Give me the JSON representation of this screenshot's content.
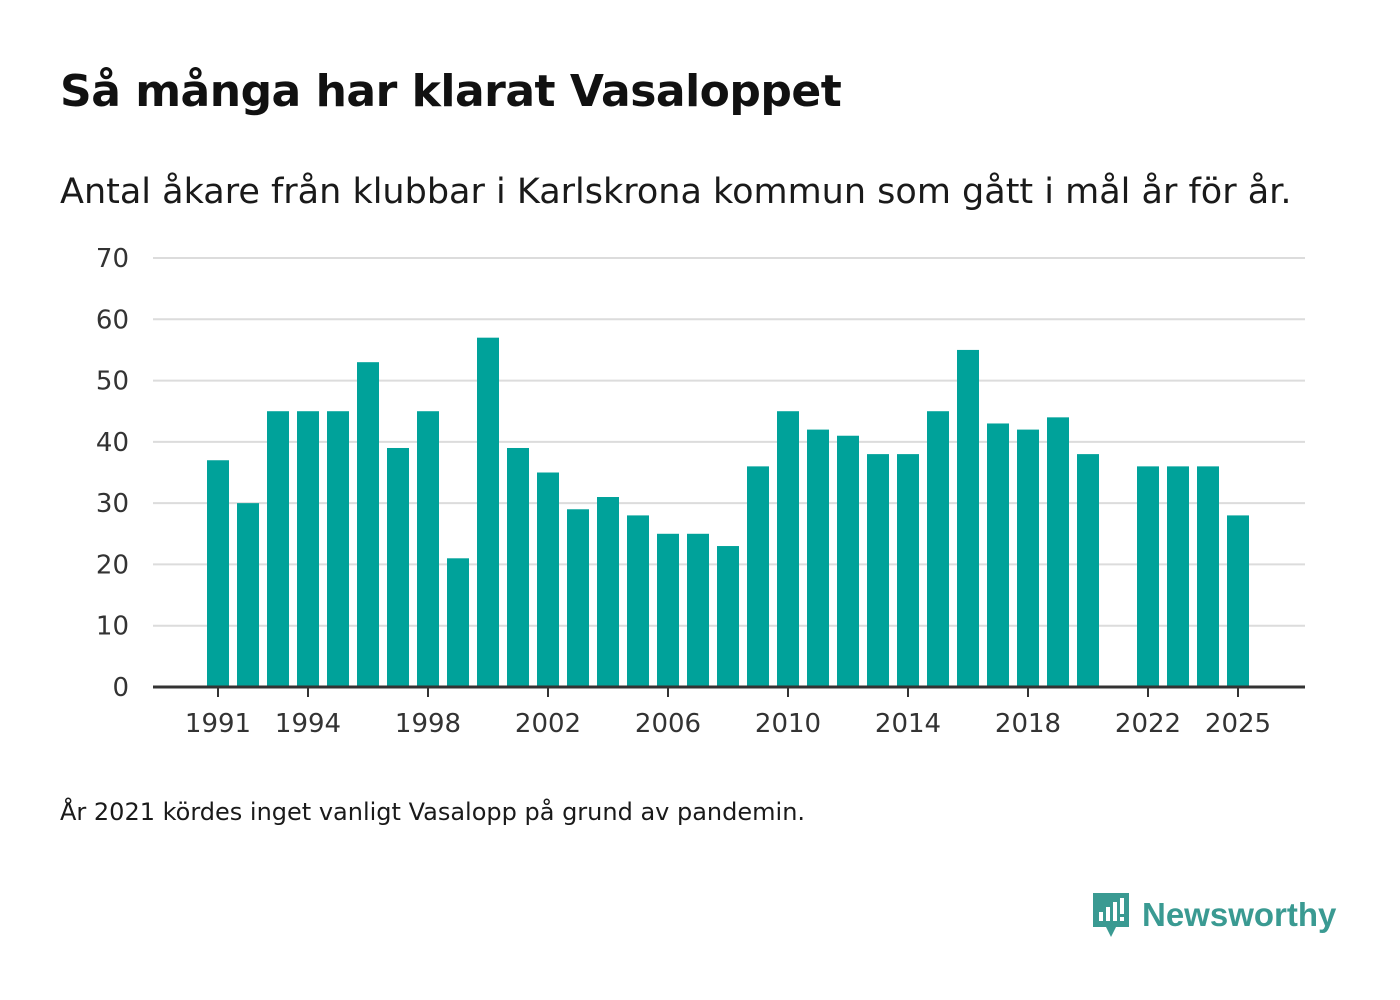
{
  "title": "Så många har klarat Vasaloppet",
  "subtitle": "Antal åkare från klubbar i Karlskrona kommun som gått i mål år för år.",
  "footnote": "År 2021 kördes inget vanligt Vasalopp på grund av pandemin.",
  "brand": {
    "name": "Newsworthy",
    "color": "#3a9a92",
    "icon": "newsworthy-logo-icon"
  },
  "chart_data": {
    "type": "bar",
    "title": "Så många har klarat Vasaloppet",
    "xlabel": "",
    "ylabel": "",
    "ylim": [
      0,
      70
    ],
    "yticks": [
      0,
      10,
      20,
      30,
      40,
      50,
      60,
      70
    ],
    "xticks": [
      "1991",
      "1994",
      "1998",
      "2002",
      "2006",
      "2010",
      "2014",
      "2018",
      "2022",
      "2025"
    ],
    "categories": [
      "1991",
      "1992",
      "1993",
      "1994",
      "1995",
      "1996",
      "1997",
      "1998",
      "1999",
      "2000",
      "2001",
      "2002",
      "2003",
      "2004",
      "2005",
      "2006",
      "2007",
      "2008",
      "2009",
      "2010",
      "2011",
      "2012",
      "2013",
      "2014",
      "2015",
      "2016",
      "2017",
      "2018",
      "2019",
      "2020",
      "2021",
      "2022",
      "2023",
      "2024",
      "2025"
    ],
    "values": [
      37,
      30,
      45,
      45,
      45,
      53,
      39,
      45,
      21,
      57,
      39,
      35,
      29,
      31,
      28,
      25,
      25,
      23,
      36,
      45,
      42,
      41,
      38,
      38,
      45,
      55,
      43,
      42,
      44,
      38,
      null,
      36,
      36,
      36,
      28
    ],
    "bar_color": "#00a29a",
    "grid": true
  }
}
